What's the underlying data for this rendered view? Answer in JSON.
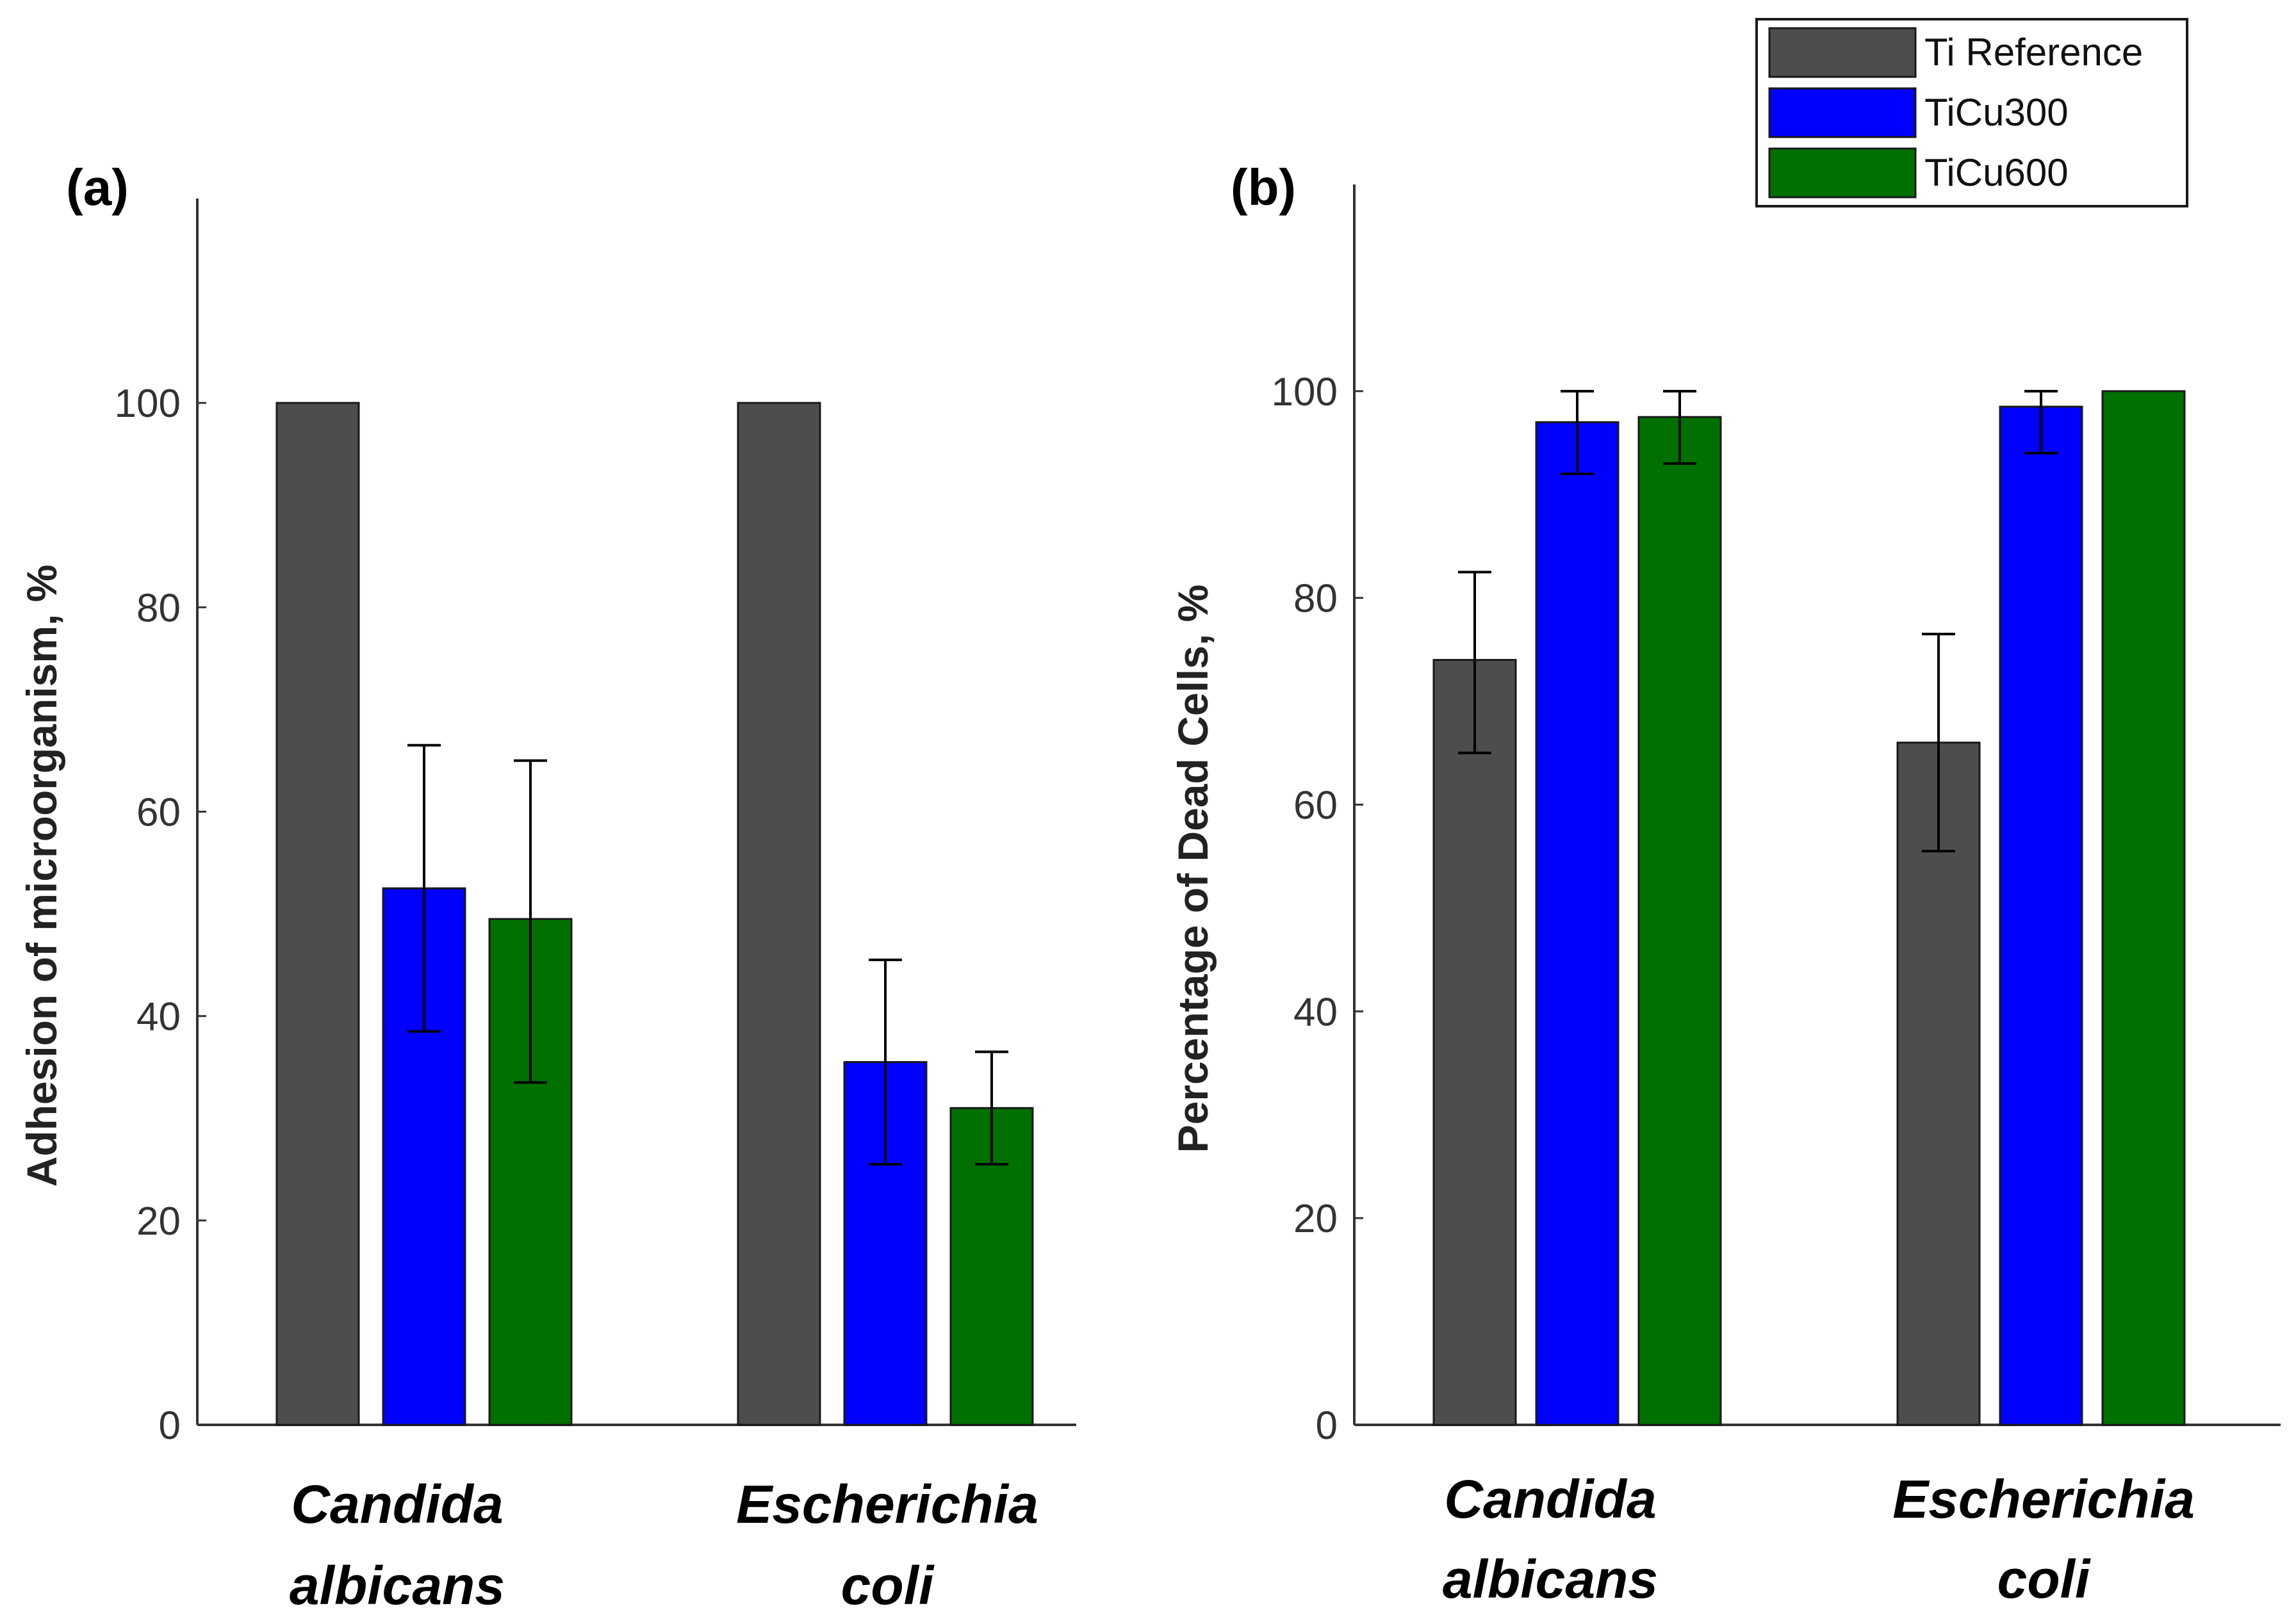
{
  "chart_data": [
    {
      "type": "bar",
      "panel_label": "(a)",
      "ylabel": "Adhesion of microorganism, %",
      "ylim": [
        0,
        120
      ],
      "yticks": [
        0,
        20,
        40,
        60,
        80,
        100
      ],
      "grid": false,
      "categories": [
        {
          "lines": [
            "Candida",
            "albicans"
          ]
        },
        {
          "lines": [
            "Escherichia",
            "coli"
          ]
        }
      ],
      "series": [
        {
          "name": "Ti Reference",
          "color": "#4d4d4d",
          "values": [
            100,
            100
          ],
          "errors": [
            null,
            null
          ]
        },
        {
          "name": "TiCu300",
          "color": "#0000ff",
          "values": [
            52.5,
            35.5
          ],
          "errors": [
            [
              38.5,
              66.5
            ],
            [
              25.5,
              45.5
            ]
          ]
        },
        {
          "name": "TiCu600",
          "color": "#007000",
          "values": [
            49.5,
            31
          ],
          "errors": [
            [
              33.5,
              65
            ],
            [
              25.5,
              36.5
            ]
          ]
        }
      ]
    },
    {
      "type": "bar",
      "panel_label": "(b)",
      "ylabel": "Percentage of Dead Cells, %",
      "ylim": [
        0,
        120
      ],
      "yticks": [
        0,
        20,
        40,
        60,
        80,
        100
      ],
      "grid": false,
      "categories": [
        {
          "lines": [
            "Candida",
            "albicans"
          ]
        },
        {
          "lines": [
            "Escherichia",
            "coli"
          ]
        }
      ],
      "series": [
        {
          "name": "Ti Reference",
          "color": "#4d4d4d",
          "values": [
            74,
            66
          ],
          "errors": [
            [
              65,
              82.5
            ],
            [
              55.5,
              76.5
            ]
          ]
        },
        {
          "name": "TiCu300",
          "color": "#0000ff",
          "values": [
            97,
            98.5
          ],
          "errors": [
            [
              92,
              100
            ],
            [
              94,
              100
            ]
          ]
        },
        {
          "name": "TiCu600",
          "color": "#007000",
          "values": [
            97.5,
            100
          ],
          "errors": [
            [
              93,
              100
            ],
            null
          ]
        }
      ]
    }
  ],
  "legend": {
    "placement": "top-right",
    "items": [
      {
        "label": "Ti Reference",
        "color": "#4d4d4d"
      },
      {
        "label": "TiCu300",
        "color": "#0000ff"
      },
      {
        "label": "TiCu600",
        "color": "#007000"
      }
    ]
  }
}
